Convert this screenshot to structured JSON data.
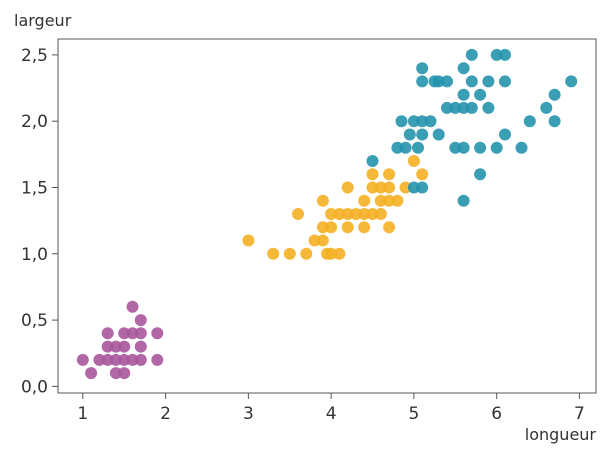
{
  "chart_data": {
    "type": "scatter",
    "title": "",
    "xlabel": "longueur",
    "ylabel": "largeur",
    "xlim": [
      0.7,
      7.2
    ],
    "ylim": [
      -0.05,
      2.62
    ],
    "x_ticks": [
      1,
      2,
      3,
      4,
      5,
      6,
      7
    ],
    "x_tick_labels": [
      "1",
      "2",
      "3",
      "4",
      "5",
      "6",
      "7"
    ],
    "y_ticks": [
      0.0,
      0.5,
      1.0,
      1.5,
      2.0,
      2.5
    ],
    "y_tick_labels": [
      "0,0",
      "0,5",
      "1,0",
      "1,5",
      "2,0",
      "2,5"
    ],
    "grid": false,
    "legend": "none",
    "series": [
      {
        "color": "#a8579c",
        "points": [
          [
            1.0,
            0.2
          ],
          [
            1.1,
            0.1
          ],
          [
            1.2,
            0.2
          ],
          [
            1.3,
            0.2
          ],
          [
            1.3,
            0.3
          ],
          [
            1.3,
            0.4
          ],
          [
            1.4,
            0.1
          ],
          [
            1.4,
            0.2
          ],
          [
            1.4,
            0.3
          ],
          [
            1.5,
            0.1
          ],
          [
            1.5,
            0.2
          ],
          [
            1.5,
            0.3
          ],
          [
            1.5,
            0.4
          ],
          [
            1.6,
            0.2
          ],
          [
            1.6,
            0.4
          ],
          [
            1.6,
            0.6
          ],
          [
            1.7,
            0.2
          ],
          [
            1.7,
            0.3
          ],
          [
            1.7,
            0.4
          ],
          [
            1.7,
            0.5
          ],
          [
            1.9,
            0.2
          ],
          [
            1.9,
            0.4
          ]
        ]
      },
      {
        "color": "#f5b024",
        "points": [
          [
            3.0,
            1.1
          ],
          [
            3.3,
            1.0
          ],
          [
            3.5,
            1.0
          ],
          [
            3.6,
            1.3
          ],
          [
            3.7,
            1.0
          ],
          [
            3.8,
            1.1
          ],
          [
            3.9,
            1.1
          ],
          [
            3.9,
            1.2
          ],
          [
            3.9,
            1.4
          ],
          [
            3.95,
            1.0
          ],
          [
            4.0,
            1.0
          ],
          [
            4.0,
            1.2
          ],
          [
            4.0,
            1.3
          ],
          [
            4.1,
            1.0
          ],
          [
            4.1,
            1.3
          ],
          [
            4.2,
            1.2
          ],
          [
            4.2,
            1.3
          ],
          [
            4.2,
            1.5
          ],
          [
            4.3,
            1.3
          ],
          [
            4.4,
            1.2
          ],
          [
            4.4,
            1.3
          ],
          [
            4.4,
            1.4
          ],
          [
            4.5,
            1.3
          ],
          [
            4.5,
            1.5
          ],
          [
            4.5,
            1.6
          ],
          [
            4.6,
            1.3
          ],
          [
            4.6,
            1.4
          ],
          [
            4.6,
            1.5
          ],
          [
            4.7,
            1.2
          ],
          [
            4.7,
            1.4
          ],
          [
            4.7,
            1.5
          ],
          [
            4.7,
            1.6
          ],
          [
            4.8,
            1.4
          ],
          [
            4.9,
            1.5
          ],
          [
            5.0,
            1.7
          ],
          [
            5.1,
            1.6
          ]
        ]
      },
      {
        "color": "#2593ad",
        "points": [
          [
            4.5,
            1.7
          ],
          [
            4.8,
            1.8
          ],
          [
            4.85,
            2.0
          ],
          [
            4.9,
            1.8
          ],
          [
            4.95,
            1.9
          ],
          [
            5.0,
            1.5
          ],
          [
            5.0,
            2.0
          ],
          [
            5.05,
            1.8
          ],
          [
            5.1,
            1.5
          ],
          [
            5.1,
            1.9
          ],
          [
            5.1,
            2.0
          ],
          [
            5.1,
            2.3
          ],
          [
            5.1,
            2.4
          ],
          [
            5.2,
            2.0
          ],
          [
            5.25,
            2.3
          ],
          [
            5.3,
            1.9
          ],
          [
            5.3,
            2.3
          ],
          [
            5.4,
            2.1
          ],
          [
            5.4,
            2.3
          ],
          [
            5.5,
            1.8
          ],
          [
            5.5,
            2.1
          ],
          [
            5.6,
            1.4
          ],
          [
            5.6,
            1.8
          ],
          [
            5.6,
            2.1
          ],
          [
            5.6,
            2.2
          ],
          [
            5.6,
            2.4
          ],
          [
            5.7,
            2.1
          ],
          [
            5.7,
            2.3
          ],
          [
            5.7,
            2.5
          ],
          [
            5.8,
            1.6
          ],
          [
            5.8,
            1.8
          ],
          [
            5.8,
            2.2
          ],
          [
            5.9,
            2.1
          ],
          [
            5.9,
            2.3
          ],
          [
            6.0,
            1.8
          ],
          [
            6.0,
            2.5
          ],
          [
            6.1,
            1.9
          ],
          [
            6.1,
            2.3
          ],
          [
            6.1,
            2.5
          ],
          [
            6.3,
            1.8
          ],
          [
            6.4,
            2.0
          ],
          [
            6.6,
            2.1
          ],
          [
            6.7,
            2.0
          ],
          [
            6.7,
            2.2
          ],
          [
            6.9,
            2.3
          ]
        ]
      }
    ]
  }
}
